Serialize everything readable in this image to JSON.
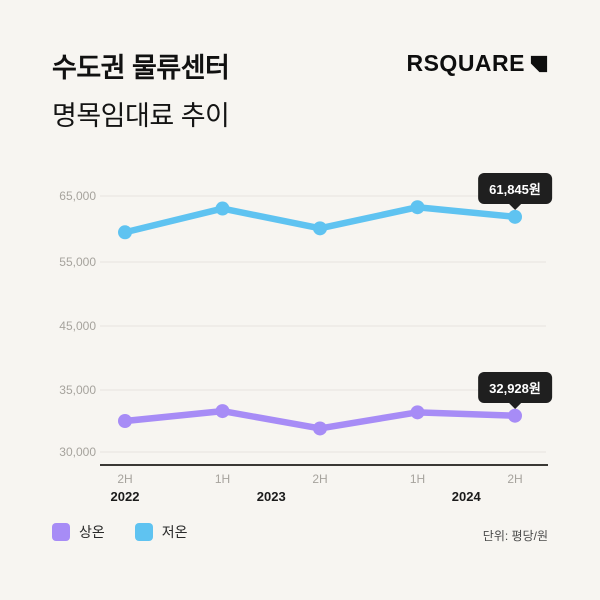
{
  "header": {
    "title_line1": "수도권 물류센터",
    "title_line2": "명목임대료 추이",
    "logo_text": "RSQUARE"
  },
  "chart_data": {
    "type": "line",
    "title": "수도권 물류센터 명목임대료 추이",
    "unit_note": "단위: 평당/원",
    "categories": [
      "2H",
      "1H",
      "2H",
      "1H",
      "2H"
    ],
    "year_groups": [
      {
        "label": "2022",
        "span": [
          0,
          0
        ]
      },
      {
        "label": "2023",
        "span": [
          1,
          2
        ]
      },
      {
        "label": "2024",
        "span": [
          3,
          4
        ]
      }
    ],
    "series": [
      {
        "name": "상온",
        "color": "#a78cf6",
        "values": [
          32500,
          33300,
          31900,
          33200,
          32928
        ],
        "callout": "32,928원"
      },
      {
        "name": "저온",
        "color": "#5fc3f1",
        "values": [
          59500,
          63100,
          60100,
          63300,
          61845
        ],
        "callout": "61,845원"
      }
    ],
    "yticks": [
      65000,
      55000,
      45000,
      35000,
      30000
    ],
    "ytick_labels": [
      "65,000",
      "55,000",
      "45,000",
      "35,000",
      "30,000"
    ],
    "ylim": [
      30000,
      67000
    ],
    "grid": true,
    "legend_position": "bottom-left"
  },
  "colors": {
    "background": "#f7f5f1",
    "warm_series": "#a78cf6",
    "cold_series": "#5fc3f1",
    "callout_bg": "#1f1f1f",
    "axis": "#3a3835",
    "gridline": "#e7e4df"
  }
}
